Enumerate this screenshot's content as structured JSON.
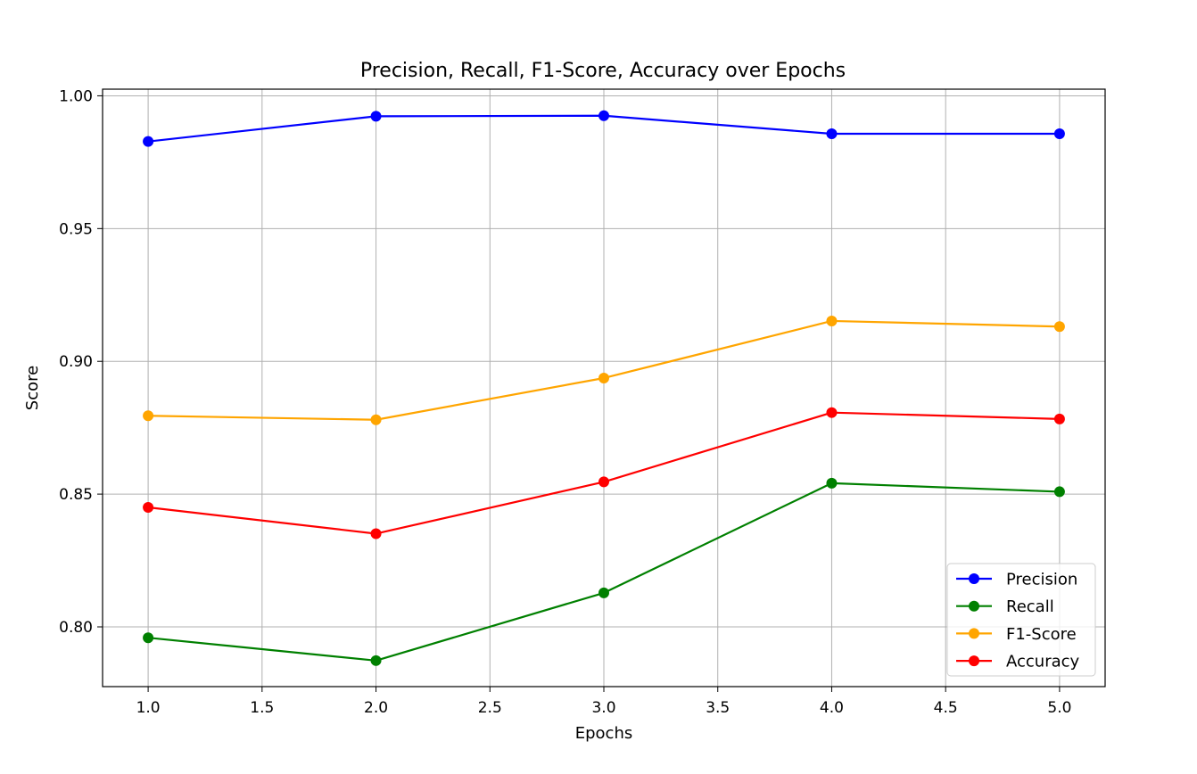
{
  "chart_data": {
    "type": "line",
    "title": "Precision, Recall, F1-Score, Accuracy over Epochs",
    "xlabel": "Epochs",
    "ylabel": "Score",
    "xlim": [
      0.8,
      5.2
    ],
    "ylim": [
      0.7775,
      1.0025
    ],
    "x_ticks": [
      1.0,
      1.5,
      2.0,
      2.5,
      3.0,
      3.5,
      4.0,
      4.5,
      5.0
    ],
    "x_tick_labels": [
      "1.0",
      "1.5",
      "2.0",
      "2.5",
      "3.0",
      "3.5",
      "4.0",
      "4.5",
      "5.0"
    ],
    "y_ticks": [
      0.8,
      0.85,
      0.9,
      0.95,
      1.0
    ],
    "y_tick_labels": [
      "0.80",
      "0.85",
      "0.90",
      "0.95",
      "1.00"
    ],
    "grid": true,
    "legend_position": "lower-right",
    "x": [
      1,
      2,
      3,
      4,
      5
    ],
    "series": [
      {
        "name": "Precision",
        "color": "#0000ff",
        "values": [
          0.9828,
          0.9923,
          0.9925,
          0.9857,
          0.9857
        ]
      },
      {
        "name": "Recall",
        "color": "#008000",
        "values": [
          0.7959,
          0.7873,
          0.8128,
          0.8541,
          0.8509
        ]
      },
      {
        "name": "F1-Score",
        "color": "#ffa500",
        "values": [
          0.8795,
          0.878,
          0.8937,
          0.9152,
          0.9131
        ]
      },
      {
        "name": "Accuracy",
        "color": "#ff0000",
        "values": [
          0.845,
          0.8351,
          0.8546,
          0.8807,
          0.8783
        ]
      }
    ]
  }
}
